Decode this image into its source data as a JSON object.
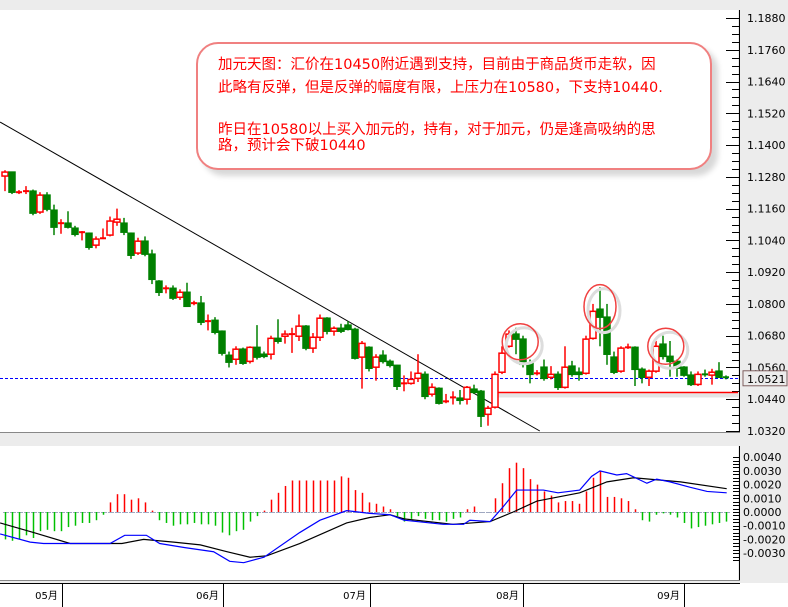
{
  "chart_data": {
    "type": "candlestick",
    "title": "",
    "up_color": "#ff0000",
    "down_color": "#008000",
    "price_axis": {
      "ticks": [
        "1.1880",
        "1.1760",
        "1.1640",
        "1.1520",
        "1.1400",
        "1.1280",
        "1.1160",
        "1.1040",
        "1.0920",
        "1.0800",
        "1.0680",
        "1.0560",
        "1.0440",
        "1.0320"
      ],
      "ylim": [
        1.032,
        1.188
      ],
      "position": "right"
    },
    "current_price": "1.0521",
    "time_axis": [
      {
        "label": "05月",
        "index": 8.1
      },
      {
        "label": "06月",
        "index": 31.1
      },
      {
        "label": "07月",
        "index": 52.1
      },
      {
        "label": "08月",
        "index": 74
      },
      {
        "label": "09月",
        "index": 97
      }
    ],
    "candles_ohlc": [
      [
        1.1283,
        1.1305,
        1.1226,
        1.1298
      ],
      [
        1.1298,
        1.13,
        1.1215,
        1.1222
      ],
      [
        1.1222,
        1.123,
        1.1215,
        1.1222
      ],
      [
        1.1226,
        1.1245,
        1.1215,
        1.1226
      ],
      [
        1.1226,
        1.1232,
        1.1135,
        1.1143
      ],
      [
        1.1147,
        1.1222,
        1.114,
        1.1211
      ],
      [
        1.1211,
        1.1222,
        1.115,
        1.1158
      ],
      [
        1.1154,
        1.1175,
        1.106,
        1.109
      ],
      [
        1.1105,
        1.112,
        1.1065,
        1.1105
      ],
      [
        1.1105,
        1.115,
        1.1085,
        1.109
      ],
      [
        1.1086,
        1.1095,
        1.1055,
        1.1063
      ],
      [
        1.1071,
        1.1075,
        1.104,
        1.1071
      ],
      [
        1.1067,
        1.107,
        1.1005,
        1.1014
      ],
      [
        1.1022,
        1.1055,
        1.101,
        1.1045
      ],
      [
        1.1048,
        1.1085,
        1.1045,
        1.1048
      ],
      [
        1.106,
        1.113,
        1.1055,
        1.1113
      ],
      [
        1.1109,
        1.116,
        1.1095,
        1.112
      ],
      [
        1.1105,
        1.1125,
        1.106,
        1.1071
      ],
      [
        1.1067,
        1.107,
        1.097,
        1.0984
      ],
      [
        1.0992,
        1.105,
        1.0985,
        1.1037
      ],
      [
        1.1037,
        1.1055,
        1.098,
        1.0988
      ],
      [
        1.0988,
        1.1005,
        1.0875,
        1.0893
      ],
      [
        1.0886,
        1.089,
        1.083,
        1.0844
      ],
      [
        1.0852,
        1.087,
        1.084,
        1.0859
      ],
      [
        1.0859,
        1.087,
        1.0815,
        1.0822
      ],
      [
        1.0825,
        1.0855,
        1.0815,
        1.0844
      ],
      [
        1.0844,
        1.088,
        1.079,
        1.0791
      ],
      [
        1.0803,
        1.0812,
        1.0795,
        1.0803
      ],
      [
        1.0803,
        1.083,
        1.072,
        1.0731
      ],
      [
        1.0735,
        1.076,
        1.07,
        1.0735
      ],
      [
        1.0738,
        1.075,
        1.0685,
        1.0693
      ],
      [
        1.0697,
        1.07,
        1.0605,
        1.0614
      ],
      [
        1.0606,
        1.062,
        1.056,
        1.058
      ],
      [
        1.0591,
        1.064,
        1.057,
        1.0629
      ],
      [
        1.0629,
        1.0635,
        1.057,
        1.0576
      ],
      [
        1.0583,
        1.064,
        1.0575,
        1.0636
      ],
      [
        1.0636,
        1.072,
        1.059,
        1.0599
      ],
      [
        1.061,
        1.062,
        1.0595,
        1.0602
      ],
      [
        1.061,
        1.068,
        1.059,
        1.067
      ],
      [
        1.067,
        1.0742,
        1.065,
        1.0659
      ],
      [
        1.0678,
        1.07,
        1.065,
        1.0686
      ],
      [
        1.0686,
        1.071,
        1.0615,
        1.0686
      ],
      [
        1.0678,
        1.076,
        1.066,
        1.0716
      ],
      [
        1.0716,
        1.072,
        1.0625,
        1.0633
      ],
      [
        1.0633,
        1.069,
        1.0615,
        1.0674
      ],
      [
        1.0674,
        1.076,
        1.066,
        1.0746
      ],
      [
        1.0746,
        1.075,
        1.0685,
        1.0697
      ],
      [
        1.0697,
        1.0715,
        1.068,
        1.0708
      ],
      [
        1.0708,
        1.0725,
        1.069,
        1.0697
      ],
      [
        1.072,
        1.0735,
        1.07,
        1.0704
      ],
      [
        1.0704,
        1.071,
        1.059,
        1.0595
      ],
      [
        1.0599,
        1.066,
        1.048,
        1.0651
      ],
      [
        1.0636,
        1.064,
        1.0545,
        1.0557
      ],
      [
        1.0561,
        1.061,
        1.051,
        1.0599
      ],
      [
        1.0606,
        1.0625,
        1.0575,
        1.0583
      ],
      [
        1.0583,
        1.059,
        1.056,
        1.0568
      ],
      [
        1.0568,
        1.057,
        1.0475,
        1.0489
      ],
      [
        1.05,
        1.053,
        1.047,
        1.05
      ],
      [
        1.05,
        1.0545,
        1.0495,
        1.0515
      ],
      [
        1.0519,
        1.061,
        1.0505,
        1.0538
      ],
      [
        1.0534,
        1.0545,
        1.044,
        1.0451
      ],
      [
        1.0459,
        1.05,
        1.045,
        1.0485
      ],
      [
        1.0481,
        1.0485,
        1.042,
        1.0425
      ],
      [
        1.0432,
        1.046,
        1.0425,
        1.0432
      ],
      [
        1.044,
        1.047,
        1.042,
        1.0447
      ],
      [
        1.0444,
        1.0475,
        1.042,
        1.0436
      ],
      [
        1.044,
        1.049,
        1.042,
        1.0485
      ],
      [
        1.0478,
        1.0495,
        1.046,
        1.0466
      ],
      [
        1.047,
        1.0475,
        1.0335,
        1.0376
      ],
      [
        1.0383,
        1.0415,
        1.034,
        1.0406
      ],
      [
        1.041,
        1.0545,
        1.0405,
        1.0534
      ],
      [
        1.0542,
        1.064,
        1.0535,
        1.0614
      ],
      [
        1.064,
        1.07,
        1.0635,
        1.0686
      ],
      [
        1.0686,
        1.071,
        1.061,
        1.0667
      ],
      [
        1.0667,
        1.068,
        1.056,
        1.0572
      ],
      [
        1.0576,
        1.059,
        1.05,
        1.0534
      ],
      [
        1.0538,
        1.055,
        1.053,
        1.0538
      ],
      [
        1.0561,
        1.059,
        1.051,
        1.0519
      ],
      [
        1.0523,
        1.0565,
        1.0515,
        1.0534
      ],
      [
        1.0534,
        1.0545,
        1.0475,
        1.0485
      ],
      [
        1.0485,
        1.064,
        1.048,
        1.0561
      ],
      [
        1.0565,
        1.0585,
        1.0525,
        1.0534
      ],
      [
        1.0542,
        1.056,
        1.051,
        1.0534
      ],
      [
        1.0538,
        1.068,
        1.0533,
        1.0667
      ],
      [
        1.067,
        1.08,
        1.0665,
        1.0772
      ],
      [
        1.078,
        1.0863,
        1.064,
        1.075
      ],
      [
        1.075,
        1.08,
        1.057,
        1.061
      ],
      [
        1.0599,
        1.062,
        1.0535,
        1.0542
      ],
      [
        1.0546,
        1.064,
        1.054,
        1.0633
      ],
      [
        1.0636,
        1.065,
        1.063,
        1.0636
      ],
      [
        1.0636,
        1.064,
        1.049,
        1.0553
      ],
      [
        1.0553,
        1.056,
        1.05,
        1.0523
      ],
      [
        1.0523,
        1.0552,
        1.049,
        1.0546
      ],
      [
        1.0546,
        1.066,
        1.054,
        1.064
      ],
      [
        1.0648,
        1.068,
        1.059,
        1.0602
      ],
      [
        1.0602,
        1.066,
        1.0525,
        1.0583
      ],
      [
        1.0583,
        1.059,
        1.0525,
        1.0557
      ],
      [
        1.0561,
        1.0565,
        1.0525,
        1.0531
      ],
      [
        1.0531,
        1.0545,
        1.049,
        1.0496
      ],
      [
        1.0496,
        1.0545,
        1.049,
        1.0534
      ],
      [
        1.0534,
        1.0552,
        1.0525,
        1.0527
      ],
      [
        1.0531,
        1.0555,
        1.0495,
        1.0542
      ],
      [
        1.0546,
        1.058,
        1.052,
        1.0523
      ],
      [
        1.0523,
        1.053,
        1.0515,
        1.0521
      ]
    ],
    "trendline": {
      "from": [
        -0.7,
        1.1487
      ],
      "to": [
        76.4,
        1.032
      ],
      "color": "#000000"
    },
    "support_line": {
      "price": 1.0466,
      "from_index": 70.4,
      "color": "#ff0000"
    },
    "current_price_line": {
      "price": 1.0521,
      "color": "#0000ff",
      "style": "dashed"
    },
    "highlight_circles": [
      {
        "index": 73.6,
        "price": 1.0657
      },
      {
        "index": 85,
        "price": 1.079
      },
      {
        "index": 94.4,
        "price": 1.064
      }
    ],
    "macd": {
      "ticks": [
        "0.0040",
        "0.0030",
        "0.0020",
        "0.0010",
        "0.0000",
        "-0.0010",
        "-0.0020",
        "-0.0030"
      ],
      "ylim": [
        -0.004,
        0.0045
      ],
      "histogram": [
        -0.002,
        -0.0021,
        -0.002,
        -0.0017,
        -0.0019,
        -0.0014,
        -0.0013,
        -0.0014,
        -0.0014,
        -0.0011,
        -0.001,
        -0.0008,
        -0.0008,
        -0.0006,
        -0.0002,
        0.0007,
        0.0013,
        0.0013,
        0.0009,
        0.001,
        0.0007,
        0.0001,
        -0.0006,
        -0.0008,
        -0.001,
        -0.0009,
        -0.0009,
        -0.0008,
        -0.0009,
        -0.0009,
        -0.001,
        -0.0015,
        -0.0017,
        -0.0014,
        -0.0013,
        -0.0007,
        -0.0003,
        0.0001,
        0.0009,
        0.0014,
        0.0019,
        0.0023,
        0.0023,
        0.0023,
        0.0023,
        0.0023,
        0.0023,
        0.0023,
        0.0026,
        0.0025,
        0.0016,
        0.0014,
        0.0007,
        0.0006,
        0.0004,
        0.0002,
        -0.0003,
        -0.0007,
        -0.0005,
        -0.0003,
        -0.0005,
        -0.0006,
        -0.0006,
        -0.0007,
        -0.0005,
        -0.0004,
        0.0002,
        0.0004,
        0.0,
        0.0,
        0.001,
        0.0021,
        0.0032,
        0.0036,
        0.0032,
        0.0024,
        0.002,
        0.0015,
        0.0012,
        0.0007,
        0.0008,
        0.0008,
        0.0006,
        0.0015,
        0.0025,
        0.003,
        0.0011,
        0.0011,
        0.001,
        0.0008,
        0.0002,
        -0.0006,
        -0.0007,
        -0.0002,
        -0.0001,
        -0.0002,
        -0.0004,
        -0.0008,
        -0.0012,
        -0.0011,
        -0.001,
        -0.0009,
        -0.0008,
        -0.0007
      ],
      "histogram_up_color": "#ff0000",
      "histogram_down_color": "#00c000",
      "macd_line": {
        "color": "#0000ff",
        "points": [
          [
            -0.7,
            -0.0016
          ],
          [
            3.6,
            -0.0022
          ],
          [
            5.5,
            -0.0023
          ],
          [
            15,
            -0.0023
          ],
          [
            17.1,
            -0.0017
          ],
          [
            20.2,
            -0.0017
          ],
          [
            22.1,
            -0.0023
          ],
          [
            25.7,
            -0.0026
          ],
          [
            29.8,
            -0.0029
          ],
          [
            32.1,
            -0.0036
          ],
          [
            34.1,
            -0.0037
          ],
          [
            37,
            -0.0033
          ],
          [
            42.1,
            -0.0015
          ],
          [
            45,
            -0.0006
          ],
          [
            48.8,
            0.0001
          ],
          [
            52.1,
            -0.0001
          ],
          [
            55,
            -0.0002
          ],
          [
            57,
            -0.0006
          ],
          [
            62.6,
            -0.0009
          ],
          [
            65.5,
            -0.0009
          ],
          [
            66.4,
            -0.0006
          ],
          [
            69.3,
            -0.0007
          ],
          [
            71.2,
            0.0004
          ],
          [
            73.1,
            0.0016
          ],
          [
            76.9,
            0.0016
          ],
          [
            79,
            0.0014
          ],
          [
            82.1,
            0.0016
          ],
          [
            83.8,
            0.0026
          ],
          [
            85,
            0.003
          ],
          [
            87.4,
            0.0027
          ],
          [
            88.8,
            0.0028
          ],
          [
            91.7,
            0.0021
          ],
          [
            93.1,
            0.0024
          ],
          [
            95,
            0.0022
          ],
          [
            97.9,
            0.0018
          ],
          [
            100.3,
            0.0015
          ],
          [
            103.1,
            0.0014
          ]
        ]
      },
      "signal_line": {
        "color": "#000000",
        "points": [
          [
            -0.7,
            -0.0008
          ],
          [
            4.1,
            -0.0015
          ],
          [
            9.3,
            -0.0023
          ],
          [
            16.7,
            -0.0023
          ],
          [
            19.8,
            -0.002
          ],
          [
            24.1,
            -0.0022
          ],
          [
            27.9,
            -0.0024
          ],
          [
            31.7,
            -0.0029
          ],
          [
            35,
            -0.0033
          ],
          [
            37.4,
            -0.0032
          ],
          [
            42.1,
            -0.0023
          ],
          [
            48.8,
            -0.0008
          ],
          [
            52.1,
            -0.0004
          ],
          [
            55,
            -0.0002
          ],
          [
            57,
            -0.0005
          ],
          [
            64,
            -0.0009
          ],
          [
            69.3,
            -0.0007
          ],
          [
            72.6,
            0.0
          ],
          [
            76,
            0.0008
          ],
          [
            82.1,
            0.0014
          ],
          [
            86,
            0.0022
          ],
          [
            89.8,
            0.0025
          ],
          [
            96.5,
            0.0022
          ],
          [
            103.1,
            0.0017
          ]
        ]
      }
    }
  },
  "annotation": {
    "lines": [
      "加元天图：汇价在10450附近遇到支持，目前由于商品货币走软，因",
      "此略有反弹，但是反弹的幅度有限，上压力在10580，下支持10440.",
      "昨日在10580以上买入加元的，持有，对于加元，仍是逢高吸纳的思",
      "路，预计会下破10440"
    ],
    "text_color": "#ff0000",
    "border_color": "#f08080"
  }
}
